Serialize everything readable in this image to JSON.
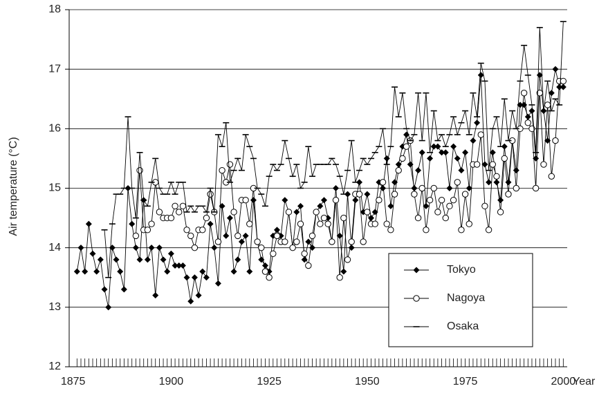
{
  "chart_data": {
    "type": "line",
    "y_label": "Air temperature (°C)",
    "x_label": "Year",
    "x": [
      1876,
      1877,
      1878,
      1879,
      1880,
      1881,
      1882,
      1883,
      1884,
      1885,
      1886,
      1887,
      1888,
      1889,
      1890,
      1891,
      1892,
      1893,
      1894,
      1895,
      1896,
      1897,
      1898,
      1899,
      1900,
      1901,
      1902,
      1903,
      1904,
      1905,
      1906,
      1907,
      1908,
      1909,
      1910,
      1911,
      1912,
      1913,
      1914,
      1915,
      1916,
      1917,
      1918,
      1919,
      1920,
      1921,
      1922,
      1923,
      1924,
      1925,
      1926,
      1927,
      1928,
      1929,
      1930,
      1931,
      1932,
      1933,
      1934,
      1935,
      1936,
      1937,
      1938,
      1939,
      1940,
      1941,
      1942,
      1943,
      1944,
      1945,
      1946,
      1947,
      1948,
      1949,
      1950,
      1951,
      1952,
      1953,
      1954,
      1955,
      1956,
      1957,
      1958,
      1959,
      1960,
      1961,
      1962,
      1963,
      1964,
      1965,
      1966,
      1967,
      1968,
      1969,
      1970,
      1971,
      1972,
      1973,
      1974,
      1975,
      1976,
      1977,
      1978,
      1979,
      1980,
      1981,
      1982,
      1983,
      1984,
      1985,
      1986,
      1987,
      1988,
      1989,
      1990,
      1991,
      1992,
      1993,
      1994,
      1995,
      1996,
      1997,
      1998,
      1999,
      2000
    ],
    "series": [
      {
        "name": "Tokyo",
        "color": "#000000",
        "marker": "diamond",
        "values": [
          13.6,
          14.0,
          13.6,
          14.4,
          13.9,
          13.6,
          13.8,
          13.3,
          13.0,
          14.0,
          13.8,
          13.6,
          13.3,
          15.0,
          14.4,
          14.0,
          13.8,
          14.8,
          13.8,
          14.0,
          13.2,
          14.0,
          13.8,
          13.6,
          13.9,
          13.7,
          13.7,
          13.7,
          13.5,
          13.1,
          13.5,
          13.2,
          13.6,
          13.5,
          14.4,
          14.0,
          13.4,
          14.7,
          14.2,
          14.5,
          13.6,
          13.8,
          14.1,
          14.2,
          13.6,
          14.8,
          14.1,
          13.8,
          13.7,
          13.6,
          14.2,
          14.3,
          14.2,
          14.8,
          14.6,
          14.0,
          14.6,
          14.7,
          13.8,
          14.1,
          14.0,
          14.6,
          14.7,
          14.8,
          14.5,
          14.1,
          15.0,
          14.2,
          13.6,
          14.9,
          14.0,
          14.8,
          15.1,
          14.6,
          14.9,
          14.5,
          14.6,
          15.1,
          15.0,
          15.5,
          14.7,
          15.1,
          15.4,
          15.7,
          15.9,
          15.4,
          15.0,
          15.3,
          15.6,
          14.7,
          15.5,
          15.7,
          15.7,
          15.6,
          15.6,
          15.0,
          15.7,
          15.5,
          15.3,
          15.6,
          15.0,
          15.8,
          16.1,
          16.9,
          15.4,
          15.1,
          15.6,
          15.1,
          14.8,
          15.7,
          15.1,
          15.8,
          15.3,
          16.4,
          16.4,
          16.2,
          16.3,
          15.5,
          16.9,
          16.3,
          15.8,
          16.6,
          17.0,
          16.7,
          16.7
        ]
      },
      {
        "name": "Nagoya",
        "color": "#000000",
        "marker": "circle",
        "values": [
          null,
          null,
          null,
          null,
          null,
          null,
          null,
          null,
          null,
          null,
          null,
          null,
          null,
          null,
          null,
          14.2,
          15.3,
          14.3,
          14.3,
          14.4,
          15.1,
          14.6,
          14.5,
          14.5,
          14.5,
          14.7,
          14.6,
          14.7,
          14.3,
          14.2,
          14.0,
          14.3,
          14.3,
          14.5,
          14.9,
          14.6,
          14.1,
          15.3,
          15.1,
          15.4,
          14.6,
          14.2,
          14.8,
          14.8,
          14.4,
          15.0,
          14.1,
          14.0,
          13.6,
          13.5,
          13.9,
          14.2,
          14.1,
          14.1,
          14.6,
          14.0,
          14.1,
          14.4,
          13.9,
          13.7,
          14.2,
          14.6,
          14.4,
          14.5,
          14.4,
          14.1,
          14.8,
          13.5,
          14.5,
          13.8,
          14.1,
          14.9,
          14.9,
          14.1,
          14.6,
          14.4,
          14.4,
          14.8,
          15.1,
          14.4,
          14.3,
          14.9,
          15.3,
          15.5,
          15.7,
          15.8,
          14.9,
          14.5,
          15.0,
          14.3,
          14.8,
          15.0,
          14.6,
          14.8,
          14.5,
          14.7,
          14.8,
          15.1,
          14.3,
          14.9,
          14.4,
          15.4,
          15.4,
          15.9,
          14.7,
          14.3,
          15.4,
          15.2,
          14.6,
          15.5,
          14.9,
          15.8,
          15.0,
          16.0,
          16.6,
          16.1,
          16.0,
          15.0,
          16.6,
          15.4,
          16.4,
          15.2,
          15.8,
          16.8,
          16.8
        ]
      },
      {
        "name": "Osaka",
        "color": "#000000",
        "marker": "dash",
        "values": [
          null,
          null,
          null,
          null,
          null,
          null,
          null,
          14.3,
          13.5,
          14.4,
          14.9,
          14.9,
          15.0,
          16.2,
          15.0,
          14.5,
          15.6,
          14.8,
          14.7,
          15.1,
          15.5,
          15.0,
          14.9,
          14.9,
          15.1,
          14.9,
          15.1,
          15.1,
          14.6,
          14.7,
          14.6,
          14.7,
          14.7,
          14.6,
          15.0,
          14.6,
          15.9,
          15.7,
          16.1,
          15.1,
          15.3,
          15.5,
          15.3,
          15.9,
          15.7,
          15.5,
          15.0,
          14.9,
          14.7,
          15.2,
          15.4,
          15.3,
          15.4,
          15.8,
          15.5,
          15.2,
          15.4,
          15.0,
          15.1,
          15.7,
          15.2,
          15.4,
          15.4,
          15.4,
          15.4,
          15.5,
          15.4,
          15.2,
          14.9,
          15.3,
          15.8,
          15.1,
          15.3,
          15.5,
          15.4,
          15.5,
          15.6,
          15.7,
          16.0,
          15.4,
          15.7,
          16.7,
          16.2,
          16.6,
          16.0,
          15.8,
          15.9,
          16.6,
          15.8,
          16.6,
          15.6,
          16.3,
          15.8,
          15.9,
          15.7,
          15.9,
          16.2,
          15.9,
          16.1,
          16.3,
          15.9,
          16.6,
          16.2,
          17.1,
          16.8,
          15.3,
          16.0,
          16.2,
          15.7,
          16.5,
          15.8,
          16.3,
          16.0,
          16.8,
          17.4,
          16.9,
          16.4,
          15.6,
          17.7,
          16.3,
          16.8,
          16.3,
          16.5,
          16.4,
          17.8
        ]
      }
    ],
    "xlim": [
      1874,
      2001
    ],
    "xticks": [
      1875,
      1900,
      1925,
      1950,
      1975,
      2000
    ],
    "ylim": [
      12,
      18
    ],
    "yticks": [
      12,
      13,
      14,
      15,
      16,
      17,
      18
    ],
    "grid": true,
    "legend": "lower right"
  }
}
